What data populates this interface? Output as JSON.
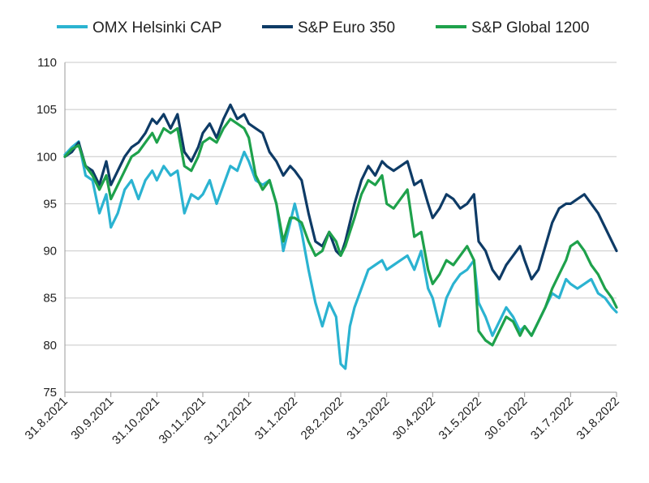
{
  "chart_data": {
    "type": "line",
    "title": "",
    "xlabel": "",
    "ylabel": "",
    "ylim": [
      75,
      110
    ],
    "yticks": [
      75,
      80,
      85,
      90,
      95,
      100,
      105,
      110
    ],
    "grid": "horizontal",
    "legend_position": "top",
    "x_tick_labels": [
      "31.8.2021",
      "30.9.2021",
      "31.10.2021",
      "30.11.2021",
      "31.12.2021",
      "31.1.2022",
      "28.2.2022",
      "31.3.2022",
      "30.4.2022",
      "31.5.2022",
      "30.6.2022",
      "31.7.2022",
      "31.8.2022"
    ],
    "series": [
      {
        "name": "OMX Helsinki CAP",
        "color": "#2bb3d1",
        "x": [
          0,
          0.15,
          0.3,
          0.45,
          0.6,
          0.75,
          0.9,
          1.0,
          1.15,
          1.3,
          1.45,
          1.6,
          1.75,
          1.9,
          2.0,
          2.15,
          2.3,
          2.45,
          2.6,
          2.75,
          2.9,
          3.0,
          3.15,
          3.3,
          3.45,
          3.6,
          3.75,
          3.9,
          4.0,
          4.15,
          4.3,
          4.45,
          4.6,
          4.75,
          4.9,
          5.0,
          5.15,
          5.3,
          5.45,
          5.6,
          5.75,
          5.9,
          6.0,
          6.1,
          6.2,
          6.3,
          6.45,
          6.6,
          6.75,
          6.9,
          7.0,
          7.15,
          7.3,
          7.45,
          7.6,
          7.75,
          7.9,
          8.0,
          8.15,
          8.3,
          8.45,
          8.6,
          8.75,
          8.9,
          9.0,
          9.15,
          9.3,
          9.45,
          9.6,
          9.75,
          9.9,
          10.0,
          10.15,
          10.3,
          10.45,
          10.6,
          10.75,
          10.9,
          11.0,
          11.15,
          11.3,
          11.45,
          11.6,
          11.75,
          11.9,
          12.0
        ],
        "values": [
          100.2,
          101.0,
          101.6,
          98.0,
          97.5,
          94.0,
          96.0,
          92.5,
          94.0,
          96.5,
          97.5,
          95.5,
          97.5,
          98.5,
          97.5,
          99.0,
          98.0,
          98.5,
          94.0,
          96.0,
          95.5,
          96.0,
          97.5,
          95.0,
          97.0,
          99.0,
          98.5,
          100.5,
          99.5,
          97.5,
          97.0,
          97.5,
          95.0,
          90.0,
          93.0,
          95.0,
          92.0,
          88.0,
          84.5,
          82.0,
          84.5,
          83.0,
          78.0,
          77.5,
          82.0,
          84.0,
          86.0,
          88.0,
          88.5,
          89.0,
          88.0,
          88.5,
          89.0,
          89.5,
          88.0,
          90.0,
          86.0,
          85.0,
          82.0,
          85.0,
          86.5,
          87.5,
          88.0,
          89.0,
          84.5,
          83.0,
          81.0,
          82.5,
          84.0,
          83.0,
          81.5,
          82.0,
          81.0,
          82.5,
          84.0,
          85.5,
          85.0,
          87.0,
          86.5,
          86.0,
          86.5,
          87.0,
          85.5,
          85.0,
          84.0,
          83.5
        ]
      },
      {
        "name": "S&P Euro 350",
        "color": "#0e3b66",
        "x": [
          0,
          0.15,
          0.3,
          0.45,
          0.6,
          0.75,
          0.9,
          1.0,
          1.15,
          1.3,
          1.45,
          1.6,
          1.75,
          1.9,
          2.0,
          2.15,
          2.3,
          2.45,
          2.6,
          2.75,
          2.9,
          3.0,
          3.15,
          3.3,
          3.45,
          3.6,
          3.75,
          3.9,
          4.0,
          4.15,
          4.3,
          4.45,
          4.6,
          4.75,
          4.9,
          5.0,
          5.15,
          5.3,
          5.45,
          5.6,
          5.75,
          5.9,
          6.0,
          6.1,
          6.2,
          6.3,
          6.45,
          6.6,
          6.75,
          6.9,
          7.0,
          7.15,
          7.3,
          7.45,
          7.6,
          7.75,
          7.9,
          8.0,
          8.15,
          8.3,
          8.45,
          8.6,
          8.75,
          8.9,
          9.0,
          9.15,
          9.3,
          9.45,
          9.6,
          9.75,
          9.9,
          10.0,
          10.15,
          10.3,
          10.45,
          10.6,
          10.75,
          10.9,
          11.0,
          11.15,
          11.3,
          11.45,
          11.6,
          11.75,
          11.9,
          12.0
        ],
        "values": [
          100.0,
          100.5,
          101.5,
          99.0,
          98.5,
          97.0,
          99.5,
          97.0,
          98.5,
          100.0,
          101.0,
          101.5,
          102.5,
          104.0,
          103.5,
          104.5,
          103.0,
          104.5,
          100.5,
          99.5,
          101.0,
          102.5,
          103.5,
          102.0,
          104.0,
          105.5,
          104.0,
          104.5,
          103.5,
          103.0,
          102.5,
          100.5,
          99.5,
          98.0,
          99.0,
          98.5,
          97.5,
          94.0,
          91.0,
          90.5,
          92.0,
          90.0,
          89.5,
          91.0,
          93.0,
          95.0,
          97.5,
          99.0,
          98.0,
          99.5,
          99.0,
          98.5,
          99.0,
          99.5,
          97.0,
          97.5,
          95.0,
          93.5,
          94.5,
          96.0,
          95.5,
          94.5,
          95.0,
          96.0,
          91.0,
          90.0,
          88.0,
          87.0,
          88.5,
          89.5,
          90.5,
          89.0,
          87.0,
          88.0,
          90.5,
          93.0,
          94.5,
          95.0,
          95.0,
          95.5,
          96.0,
          95.0,
          94.0,
          92.5,
          91.0,
          90.0
        ]
      },
      {
        "name": "S&P Global 1200",
        "color": "#1ea14b",
        "x": [
          0,
          0.15,
          0.3,
          0.45,
          0.6,
          0.75,
          0.9,
          1.0,
          1.15,
          1.3,
          1.45,
          1.6,
          1.75,
          1.9,
          2.0,
          2.15,
          2.3,
          2.45,
          2.6,
          2.75,
          2.9,
          3.0,
          3.15,
          3.3,
          3.45,
          3.6,
          3.75,
          3.9,
          4.0,
          4.15,
          4.3,
          4.45,
          4.6,
          4.75,
          4.9,
          5.0,
          5.15,
          5.3,
          5.45,
          5.6,
          5.75,
          5.9,
          6.0,
          6.1,
          6.2,
          6.3,
          6.45,
          6.6,
          6.75,
          6.9,
          7.0,
          7.15,
          7.3,
          7.45,
          7.6,
          7.75,
          7.9,
          8.0,
          8.15,
          8.3,
          8.45,
          8.6,
          8.75,
          8.9,
          9.0,
          9.15,
          9.3,
          9.45,
          9.6,
          9.75,
          9.9,
          10.0,
          10.15,
          10.3,
          10.45,
          10.6,
          10.75,
          10.9,
          11.0,
          11.15,
          11.3,
          11.45,
          11.6,
          11.75,
          11.9,
          12.0
        ],
        "values": [
          100.0,
          100.8,
          101.2,
          99.0,
          98.0,
          96.5,
          98.0,
          95.5,
          97.0,
          98.5,
          100.0,
          100.5,
          101.5,
          102.5,
          101.5,
          103.0,
          102.5,
          103.0,
          99.0,
          98.5,
          100.0,
          101.5,
          102.0,
          101.5,
          103.0,
          104.0,
          103.5,
          103.0,
          102.0,
          98.0,
          96.5,
          97.5,
          95.0,
          91.0,
          93.5,
          93.5,
          93.0,
          91.0,
          89.5,
          90.0,
          92.0,
          91.0,
          89.5,
          90.5,
          92.0,
          93.5,
          96.0,
          97.5,
          97.0,
          98.0,
          95.0,
          94.5,
          95.5,
          96.5,
          91.5,
          92.0,
          88.0,
          86.5,
          87.5,
          89.0,
          88.5,
          89.5,
          90.5,
          89.0,
          81.5,
          80.5,
          80.0,
          81.5,
          83.0,
          82.5,
          81.0,
          82.0,
          81.0,
          82.5,
          84.0,
          86.0,
          87.5,
          89.0,
          90.5,
          91.0,
          90.0,
          88.5,
          87.5,
          86.0,
          85.0,
          84.0
        ]
      }
    ]
  }
}
